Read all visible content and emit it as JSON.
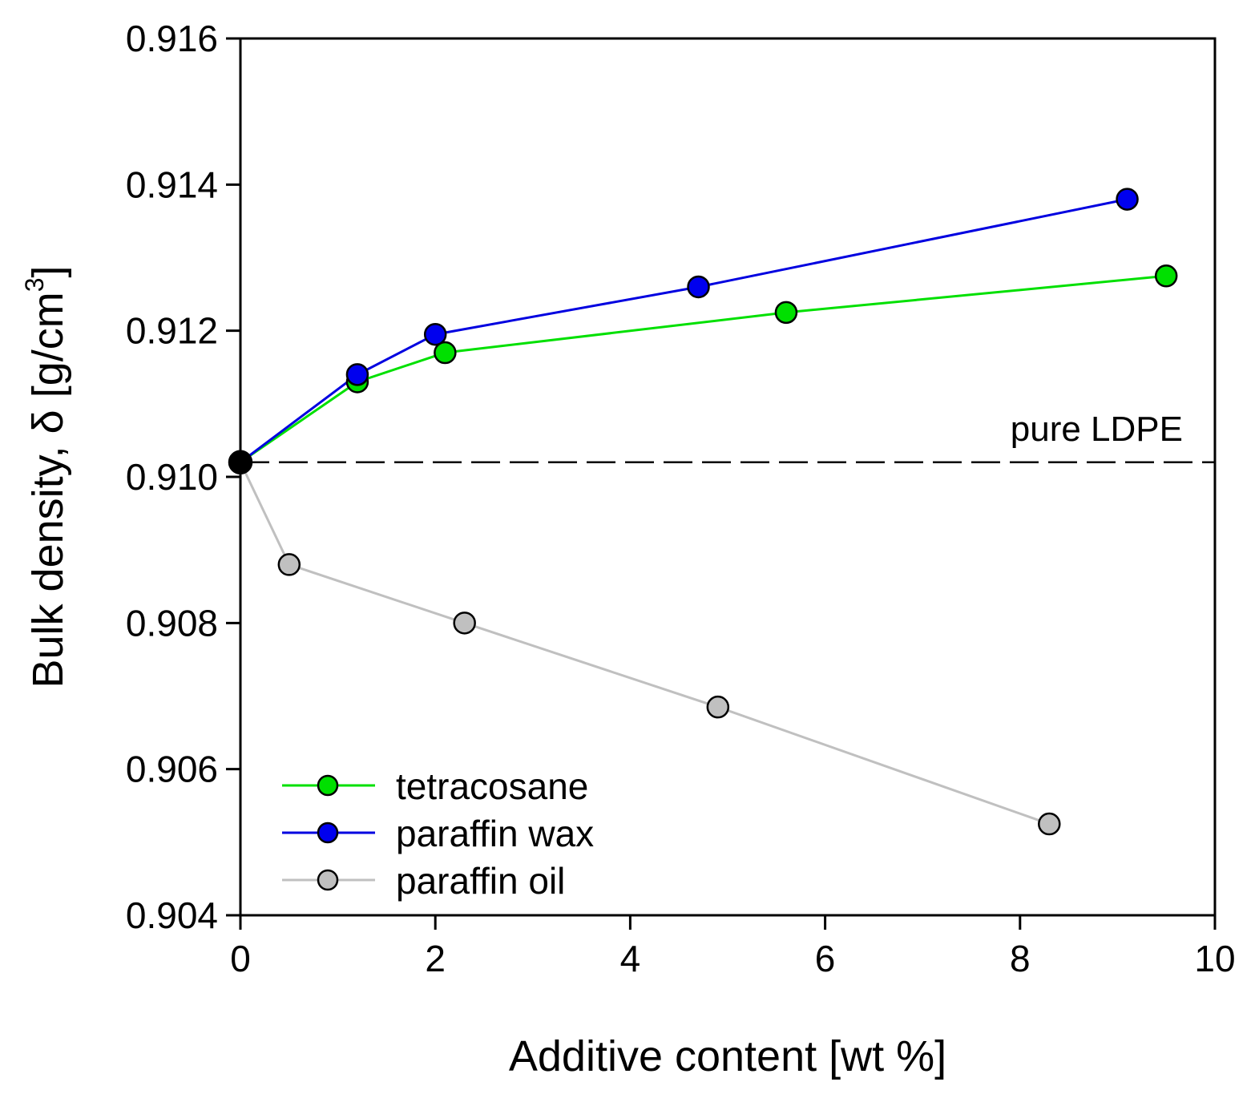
{
  "chart_data": {
    "type": "line",
    "title": "",
    "xlabel": "Additive content [wt %]",
    "ylabel_main": "Bulk density, δ [g/cm",
    "ylabel_sup": "3",
    "ylabel_close": "]",
    "xlim": [
      0,
      10
    ],
    "ylim": [
      0.904,
      0.916
    ],
    "xticks": [
      0,
      2,
      4,
      6,
      8,
      10
    ],
    "xtick_labels": [
      "0",
      "2",
      "4",
      "6",
      "8",
      "10"
    ],
    "yticks": [
      0.904,
      0.906,
      0.908,
      0.91,
      0.912,
      0.914,
      0.916
    ],
    "ytick_labels": [
      "0.904",
      "0.906",
      "0.908",
      "0.910",
      "0.912",
      "0.914",
      "0.916"
    ],
    "grid": false,
    "legend_position": "bottom-left",
    "reference_line": {
      "label": "pure LDPE",
      "y": 0.9102,
      "style": "dashed",
      "color": "#000000"
    },
    "pure_point": {
      "x": 0,
      "y": 0.9102,
      "color": "#000000"
    },
    "series": [
      {
        "name": "tetracosane",
        "line_color": "#00e000",
        "marker_color": "#00e000",
        "x": [
          0,
          1.2,
          2.1,
          5.6,
          9.5
        ],
        "y": [
          0.9102,
          0.9113,
          0.9117,
          0.91225,
          0.91275
        ]
      },
      {
        "name": "paraffin wax",
        "line_color": "#0000e0",
        "marker_color": "#0000ee",
        "x": [
          0,
          1.2,
          2.0,
          4.7,
          9.1
        ],
        "y": [
          0.9102,
          0.9114,
          0.91195,
          0.9126,
          0.9138
        ]
      },
      {
        "name": "paraffin oil",
        "line_color": "#c0c0c0",
        "marker_color": "#c0c0c0",
        "x": [
          0,
          0.5,
          2.3,
          4.9,
          8.3
        ],
        "y": [
          0.9102,
          0.9088,
          0.908,
          0.90685,
          0.90525
        ]
      }
    ]
  }
}
